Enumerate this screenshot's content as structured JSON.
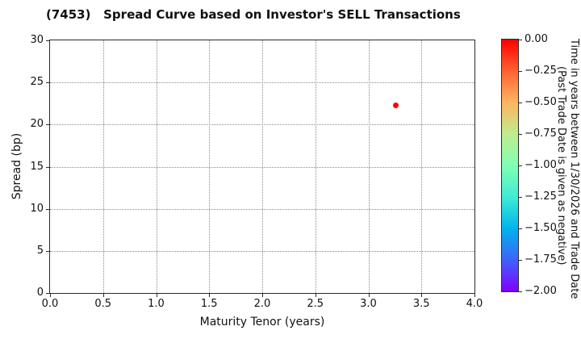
{
  "figure": {
    "background": "#ffffff"
  },
  "chart_data": {
    "type": "scatter",
    "title": "(7453)   Spread Curve based on Investor's SELL Transactions",
    "xlabel": "Maturity Tenor (years)",
    "ylabel": "Spread (bp)",
    "xlim": [
      0.0,
      4.0
    ],
    "ylim": [
      0,
      30
    ],
    "xticks": [
      "0.0",
      "0.5",
      "1.0",
      "1.5",
      "2.0",
      "2.5",
      "3.0",
      "3.5",
      "4.0"
    ],
    "yticks": [
      "0",
      "5",
      "10",
      "15",
      "20",
      "25",
      "30"
    ],
    "grid": true,
    "grid_style": "dotted",
    "grid_color": "#8a8a8a",
    "legend_position": "none",
    "points": [
      {
        "x": 3.26,
        "y": 22.3,
        "color": "#ff0000",
        "colorbar_value": 0.0
      }
    ],
    "colorbar": {
      "title_line1": "Time in years between 1/30/2026 and Trade Date",
      "title_line2": "(Past Trade Date is given as negative)",
      "vmax": 0.0,
      "vmin": -2.0,
      "ticks": [
        "0.00",
        "−0.25",
        "−0.50",
        "−0.75",
        "−1.00",
        "−1.25",
        "−1.50",
        "−1.75",
        "−2.00"
      ],
      "colormap": "rainbow",
      "gradient_top_to_bottom": [
        "#ff0000",
        "#ff6232",
        "#ffb461",
        "#bfec8e",
        "#80ffb4",
        "#40ecd4",
        "#00b4ec",
        "#4062fa",
        "#8000ff"
      ]
    }
  }
}
